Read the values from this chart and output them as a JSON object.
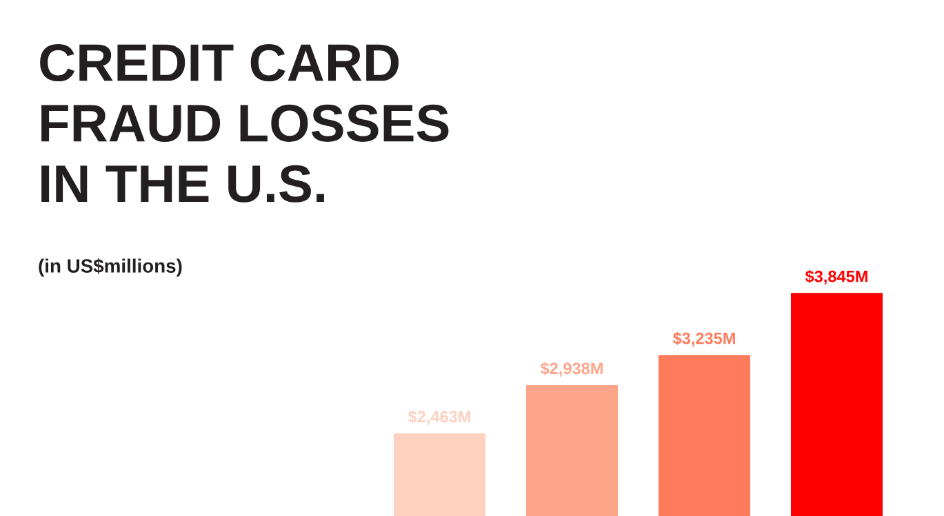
{
  "chart_data": {
    "type": "bar",
    "title": "CREDIT CARD\nFRAUD LOSSES\nIN THE U.S.",
    "subtitle": "(in US$millions)",
    "categories": [
      null,
      null,
      null,
      null
    ],
    "values": [
      2463,
      2938,
      3235,
      3845
    ],
    "colors": [
      "#fdd0bf",
      "#fea589",
      "#ff7b5c",
      "#ff0000"
    ],
    "value_labels": [
      "$2,463M",
      "$2,938M",
      "$3,235M",
      "$3,845M"
    ]
  }
}
